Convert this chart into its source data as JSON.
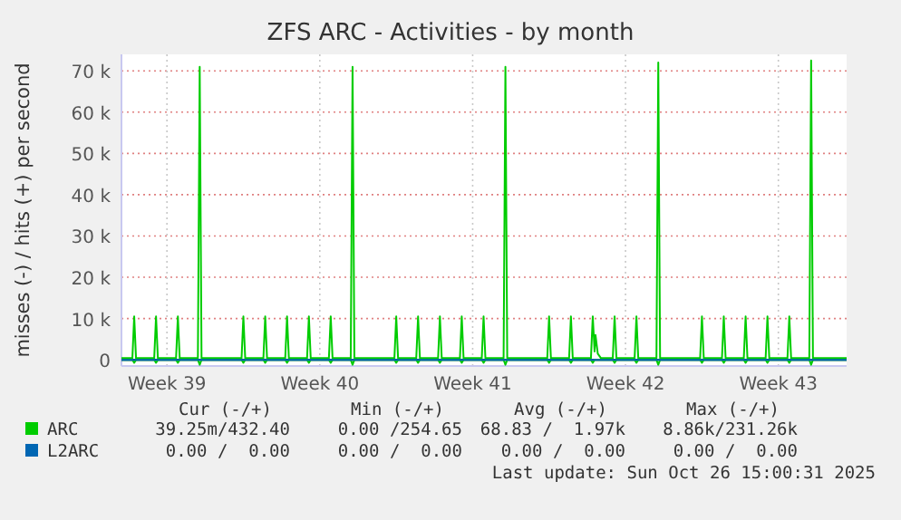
{
  "chart_data": {
    "type": "line",
    "title": "ZFS ARC - Activities - by month",
    "ylabel": "misses (-) / hits (+) per second",
    "xlim": [
      "2025-09-23T10:00",
      "2025-10-26T15:00"
    ],
    "xticks": [
      {
        "value": "2025-09-25T12:00",
        "label": "Week 39"
      },
      {
        "value": "2025-10-02T12:00",
        "label": "Week 40"
      },
      {
        "value": "2025-10-09T12:00",
        "label": "Week 41"
      },
      {
        "value": "2025-10-16T12:00",
        "label": "Week 42"
      },
      {
        "value": "2025-10-23T12:00",
        "label": "Week 43"
      }
    ],
    "ylim": [
      -1500,
      74000
    ],
    "yticks": [
      0,
      {
        "value": 10000,
        "label": "10 k"
      },
      {
        "value": 20000,
        "label": "20 k"
      },
      {
        "value": 30000,
        "label": "30 k"
      },
      {
        "value": 40000,
        "label": "40 k"
      },
      {
        "value": 50000,
        "label": "50 k"
      },
      {
        "value": 60000,
        "label": "60 k"
      },
      {
        "value": 70000,
        "label": "70 k"
      }
    ],
    "grid": true,
    "legend": "bottom left",
    "marker": "none",
    "line_style": "solid",
    "series": [
      {
        "name": "ARC",
        "color": "#00cc00",
        "x": [
          "2025-09-23T10:00",
          "2025-09-23T22:00",
          "2025-09-24T00:00",
          "2025-09-24T02:00",
          "2025-09-24T22:00",
          "2025-09-25T00:00",
          "2025-09-25T02:00",
          "2025-09-25T22:00",
          "2025-09-26T00:00",
          "2025-09-26T02:00",
          "2025-09-26T22:00",
          "2025-09-27T00:00",
          "2025-09-27T02:00",
          "2025-09-28T22:00",
          "2025-09-29T00:00",
          "2025-09-29T02:00",
          "2025-09-29T22:00",
          "2025-09-30T00:00",
          "2025-09-30T02:00",
          "2025-09-30T22:00",
          "2025-10-01T00:00",
          "2025-10-01T02:00",
          "2025-10-01T22:00",
          "2025-10-02T00:00",
          "2025-10-02T02:00",
          "2025-10-02T22:00",
          "2025-10-03T00:00",
          "2025-10-03T02:00",
          "2025-10-03T22:00",
          "2025-10-04T00:00",
          "2025-10-04T02:00",
          "2025-10-05T22:00",
          "2025-10-06T00:00",
          "2025-10-06T02:00",
          "2025-10-06T22:00",
          "2025-10-07T00:00",
          "2025-10-07T02:00",
          "2025-10-07T22:00",
          "2025-10-08T00:00",
          "2025-10-08T02:00",
          "2025-10-08T22:00",
          "2025-10-09T00:00",
          "2025-10-09T02:00",
          "2025-10-09T22:00",
          "2025-10-10T00:00",
          "2025-10-10T02:00",
          "2025-10-10T22:00",
          "2025-10-11T00:00",
          "2025-10-11T02:00",
          "2025-10-12T22:00",
          "2025-10-13T00:00",
          "2025-10-13T02:00",
          "2025-10-13T22:00",
          "2025-10-14T00:00",
          "2025-10-14T02:00",
          "2025-10-14T22:00",
          "2025-10-15T00:00",
          "2025-10-15T02:00",
          "2025-10-15T03:00",
          "2025-10-15T05:30",
          "2025-10-15T09:00",
          "2025-10-15T22:00",
          "2025-10-16T00:00",
          "2025-10-16T02:00",
          "2025-10-16T22:00",
          "2025-10-17T00:00",
          "2025-10-17T02:00",
          "2025-10-17T22:00",
          "2025-10-18T00:00",
          "2025-10-18T02:00",
          "2025-10-19T22:00",
          "2025-10-20T00:00",
          "2025-10-20T02:00",
          "2025-10-20T22:00",
          "2025-10-21T00:00",
          "2025-10-21T02:00",
          "2025-10-21T22:00",
          "2025-10-22T00:00",
          "2025-10-22T02:00",
          "2025-10-22T22:00",
          "2025-10-23T00:00",
          "2025-10-23T02:00",
          "2025-10-23T22:00",
          "2025-10-24T00:00",
          "2025-10-24T02:00",
          "2025-10-24T22:00",
          "2025-10-25T00:00",
          "2025-10-25T02:00",
          "2025-10-26T15:00"
        ],
        "values": [
          400,
          400,
          10500,
          400,
          400,
          10500,
          400,
          400,
          10500,
          400,
          400,
          71000,
          400,
          400,
          10500,
          400,
          400,
          10500,
          400,
          400,
          10500,
          400,
          400,
          10500,
          400,
          400,
          10500,
          400,
          400,
          71000,
          400,
          400,
          10500,
          400,
          400,
          10500,
          400,
          400,
          10500,
          400,
          400,
          10500,
          400,
          400,
          10500,
          400,
          400,
          71000,
          400,
          400,
          10500,
          400,
          400,
          10500,
          400,
          400,
          10500,
          2000,
          6000,
          1500,
          400,
          400,
          10500,
          400,
          400,
          10500,
          400,
          400,
          72000,
          400,
          400,
          10500,
          400,
          400,
          10500,
          400,
          400,
          10500,
          400,
          400,
          10500,
          400,
          400,
          10500,
          400,
          400,
          72500,
          400,
          400
        ]
      },
      {
        "color": "#00cc00",
        "x": [
          "2025-09-23T10:00",
          "2025-09-23T22:00",
          "2025-09-24T00:00",
          "2025-09-24T02:00",
          "2025-09-24T22:00",
          "2025-09-25T00:00",
          "2025-09-25T02:00",
          "2025-09-25T22:00",
          "2025-09-26T00:00",
          "2025-09-26T02:00",
          "2025-09-26T22:00",
          "2025-09-27T00:00",
          "2025-09-27T02:00",
          "2025-09-28T22:00",
          "2025-09-29T00:00",
          "2025-09-29T02:00",
          "2025-09-29T22:00",
          "2025-09-30T00:00",
          "2025-09-30T02:00",
          "2025-09-30T22:00",
          "2025-10-01T00:00",
          "2025-10-01T02:00",
          "2025-10-01T22:00",
          "2025-10-02T00:00",
          "2025-10-02T02:00",
          "2025-10-02T22:00",
          "2025-10-03T00:00",
          "2025-10-03T02:00",
          "2025-10-03T22:00",
          "2025-10-04T00:00",
          "2025-10-04T02:00",
          "2025-10-05T22:00",
          "2025-10-06T00:00",
          "2025-10-06T02:00",
          "2025-10-06T22:00",
          "2025-10-07T00:00",
          "2025-10-07T02:00",
          "2025-10-07T22:00",
          "2025-10-08T00:00",
          "2025-10-08T02:00",
          "2025-10-08T22:00",
          "2025-10-09T00:00",
          "2025-10-09T02:00",
          "2025-10-09T22:00",
          "2025-10-10T00:00",
          "2025-10-10T02:00",
          "2025-10-10T22:00",
          "2025-10-11T00:00",
          "2025-10-11T02:00",
          "2025-10-12T22:00",
          "2025-10-13T00:00",
          "2025-10-13T02:00",
          "2025-10-13T22:00",
          "2025-10-14T00:00",
          "2025-10-14T02:00",
          "2025-10-14T22:00",
          "2025-10-15T00:00",
          "2025-10-15T02:00",
          "2025-10-15T22:00",
          "2025-10-16T00:00",
          "2025-10-16T02:00",
          "2025-10-16T22:00",
          "2025-10-17T00:00",
          "2025-10-17T02:00",
          "2025-10-17T22:00",
          "2025-10-18T00:00",
          "2025-10-18T02:00",
          "2025-10-19T22:00",
          "2025-10-20T00:00",
          "2025-10-20T02:00",
          "2025-10-20T22:00",
          "2025-10-21T00:00",
          "2025-10-21T02:00",
          "2025-10-21T22:00",
          "2025-10-22T00:00",
          "2025-10-22T02:00",
          "2025-10-22T22:00",
          "2025-10-23T00:00",
          "2025-10-23T02:00",
          "2025-10-23T22:00",
          "2025-10-24T00:00",
          "2025-10-24T02:00",
          "2025-10-24T22:00",
          "2025-10-25T00:00",
          "2025-10-25T02:00",
          "2025-10-26T15:00"
        ],
        "values": [
          0,
          0,
          -700,
          0,
          0,
          -700,
          0,
          0,
          -700,
          0,
          0,
          -1200,
          0,
          0,
          -700,
          0,
          0,
          -700,
          0,
          0,
          -700,
          0,
          0,
          -700,
          0,
          0,
          -700,
          0,
          0,
          -1200,
          0,
          0,
          -700,
          0,
          0,
          -700,
          0,
          0,
          -700,
          0,
          0,
          -700,
          0,
          0,
          -700,
          0,
          0,
          -1200,
          0,
          0,
          -700,
          0,
          0,
          -700,
          0,
          0,
          -700,
          0,
          0,
          -700,
          0,
          0,
          -700,
          0,
          0,
          -1200,
          0,
          0,
          -700,
          0,
          0,
          -700,
          0,
          0,
          -700,
          0,
          0,
          -700,
          0,
          0,
          -700,
          0,
          0,
          -1200,
          0,
          0
        ]
      },
      {
        "name": "L2ARC",
        "color": "#0066b3",
        "x": [
          "2025-09-23T10:00",
          "2025-10-26T15:00"
        ],
        "values": [
          0,
          0
        ]
      }
    ],
    "annotations": [
      "Cur (-/+)",
      "Min (-/+)",
      "Avg (-/+)",
      "Max (-/+)",
      "39.25m/432.40",
      "0.00 /254.65",
      "68.83 /  1.97k",
      "8.86k/231.26k",
      "0.00 /  0.00",
      "0.00 /  0.00",
      "0.00 /  0.00",
      "0.00 /  0.00",
      "Last update: Sun Oct 26 15:00:31 2025"
    ]
  }
}
